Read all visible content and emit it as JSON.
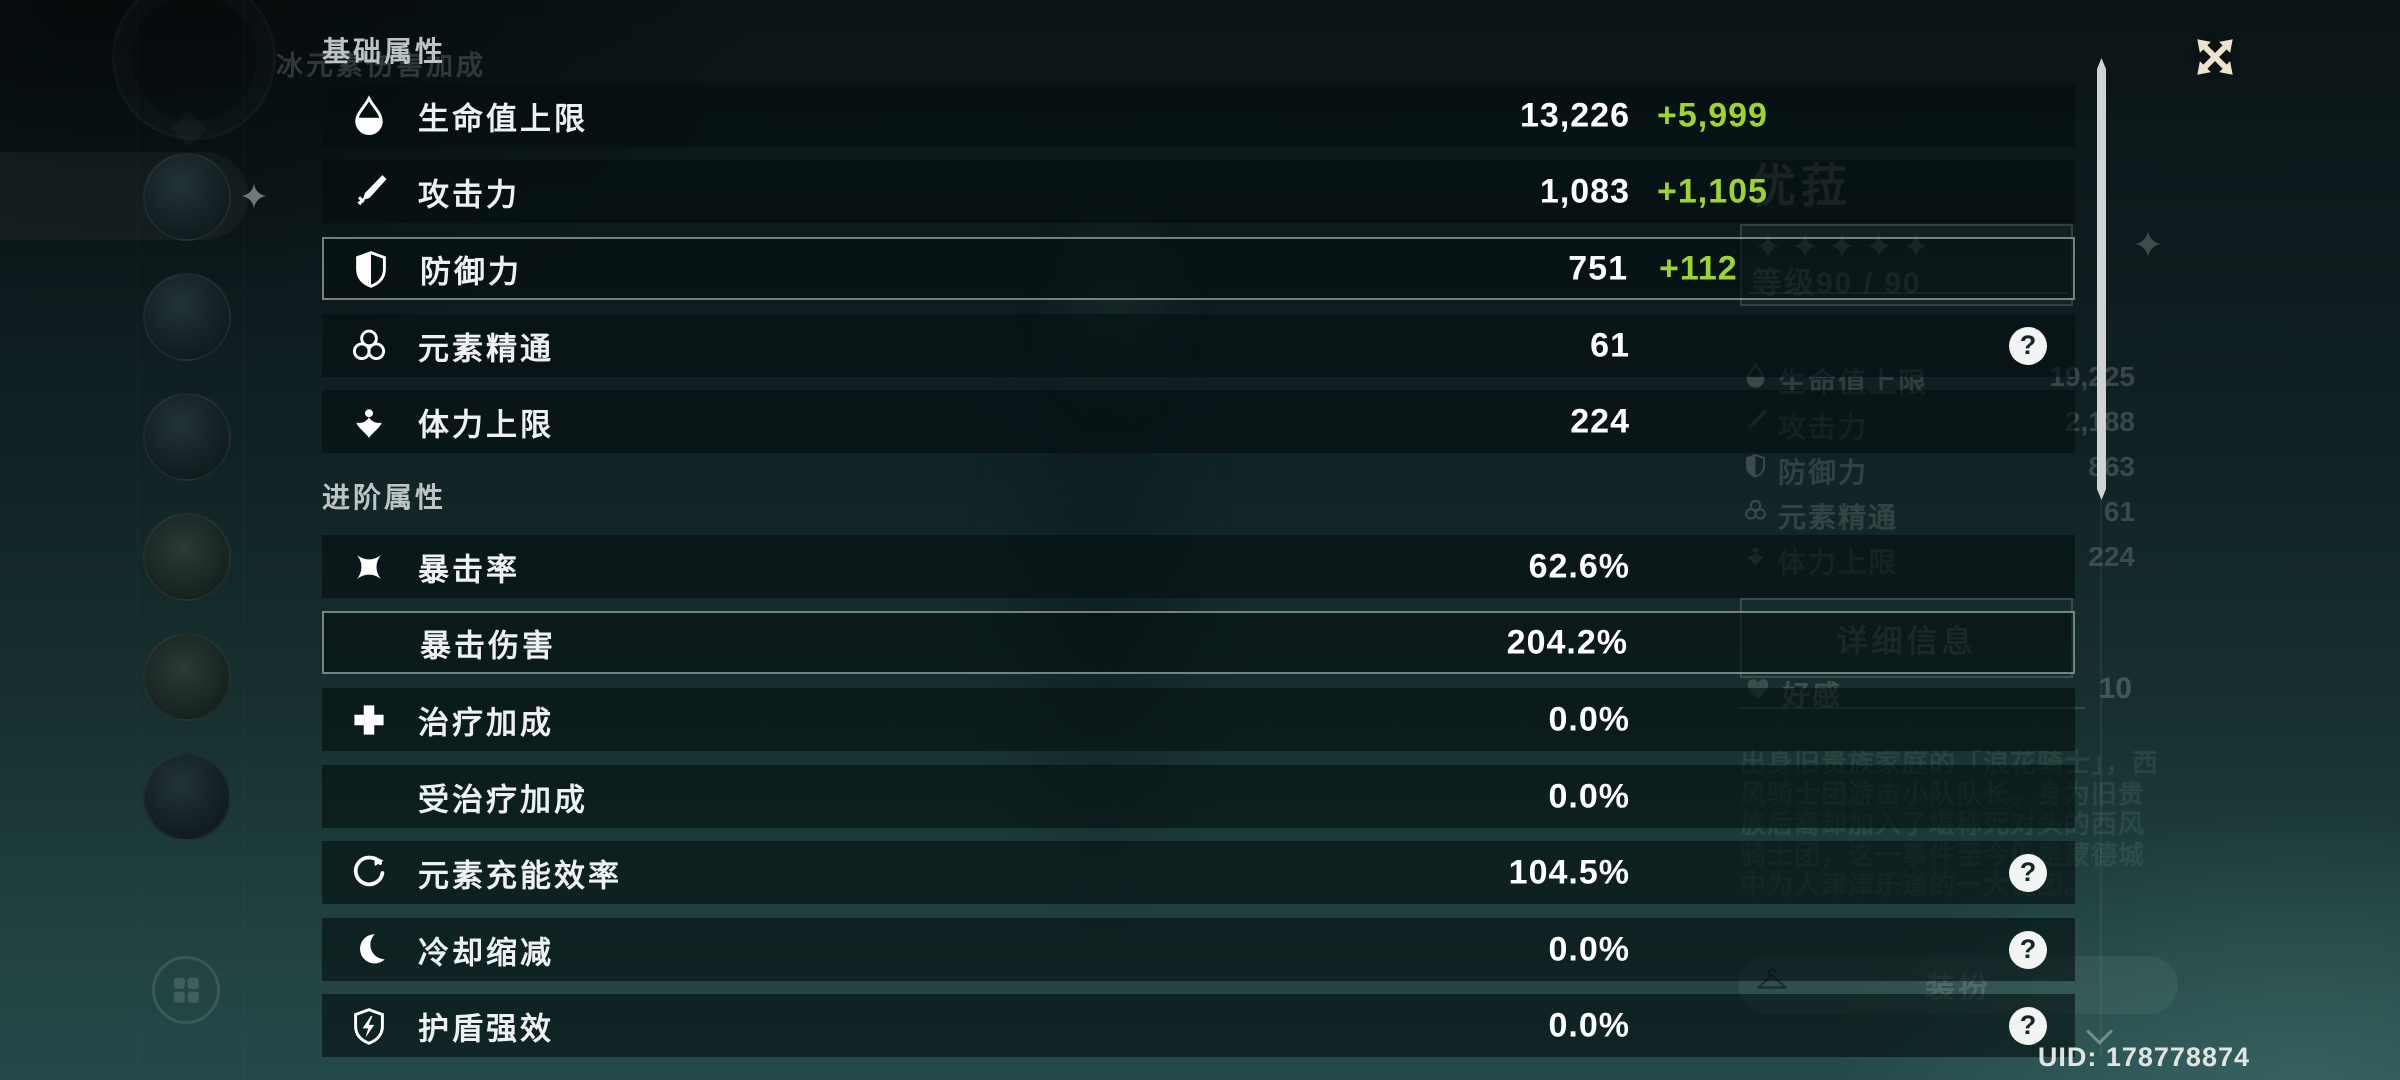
{
  "attributes_panel": {
    "sections": [
      {
        "title": "基础属性",
        "rows": [
          {
            "icon": "hp-icon",
            "label": "生命值上限",
            "value": "13,226",
            "bonus": "+5,999",
            "help": false,
            "highlighted": false
          },
          {
            "icon": "atk-icon",
            "label": "攻击力",
            "value": "1,083",
            "bonus": "+1,105",
            "help": false,
            "highlighted": false
          },
          {
            "icon": "def-icon",
            "label": "防御力",
            "value": "751",
            "bonus": "+112",
            "help": false,
            "highlighted": true
          },
          {
            "icon": "elemental-mastery-icon",
            "label": "元素精通",
            "value": "61",
            "bonus": null,
            "help": true,
            "highlighted": false
          },
          {
            "icon": "stamina-icon",
            "label": "体力上限",
            "value": "224",
            "bonus": null,
            "help": false,
            "highlighted": false
          }
        ]
      },
      {
        "title": "进阶属性",
        "rows": [
          {
            "icon": "crit-rate-icon",
            "label": "暴击率",
            "value": "62.6%",
            "bonus": null,
            "help": false,
            "highlighted": false
          },
          {
            "icon": null,
            "label": "暴击伤害",
            "value": "204.2%",
            "bonus": null,
            "help": false,
            "highlighted": true
          },
          {
            "icon": "healing-bonus-icon",
            "label": "治疗加成",
            "value": "0.0%",
            "bonus": null,
            "help": false,
            "highlighted": false
          },
          {
            "icon": null,
            "label": "受治疗加成",
            "value": "0.0%",
            "bonus": null,
            "help": false,
            "highlighted": false
          },
          {
            "icon": "energy-recharge-icon",
            "label": "元素充能效率",
            "value": "104.5%",
            "bonus": null,
            "help": true,
            "highlighted": false
          },
          {
            "icon": "cooldown-reduction-icon",
            "label": "冷却缩减",
            "value": "0.0%",
            "bonus": null,
            "help": true,
            "highlighted": false
          },
          {
            "icon": "shield-strength-icon",
            "label": "护盾强效",
            "value": "0.0%",
            "bonus": null,
            "help": true,
            "highlighted": false
          }
        ]
      }
    ]
  },
  "background": {
    "element_text": "冰元素伤害加成",
    "character_name": "优菈",
    "star_count": 5,
    "level_text": "等级90 / 90",
    "stats": [
      {
        "icon": "hp-icon",
        "label": "生命值上限",
        "value": "19,225"
      },
      {
        "icon": "atk-icon",
        "label": "攻击力",
        "value": "2,188"
      },
      {
        "icon": "def-icon",
        "label": "防御力",
        "value": "863"
      },
      {
        "icon": "elemental-mastery-icon",
        "label": "元素精通",
        "value": "61"
      },
      {
        "icon": "stamina-icon",
        "label": "体力上限",
        "value": "224"
      }
    ],
    "details_button_label": "详细信息",
    "friendship_label": "好感",
    "friendship_value": "10",
    "description_lines": [
      "出身旧贵族家庭的「浪花骑士」，西",
      "风骑士团游击小队队长。身为旧贵",
      "族后裔却加入了堪称死对头的西风",
      "骑士团，这一事件至今仍是蒙德城",
      "中为人津津乐道的一大谜团。"
    ],
    "dressup_button_label": "装扮"
  },
  "footer": {
    "uid": "UID: 178778874"
  },
  "colors": {
    "bonus_green": "#9ed42e"
  }
}
